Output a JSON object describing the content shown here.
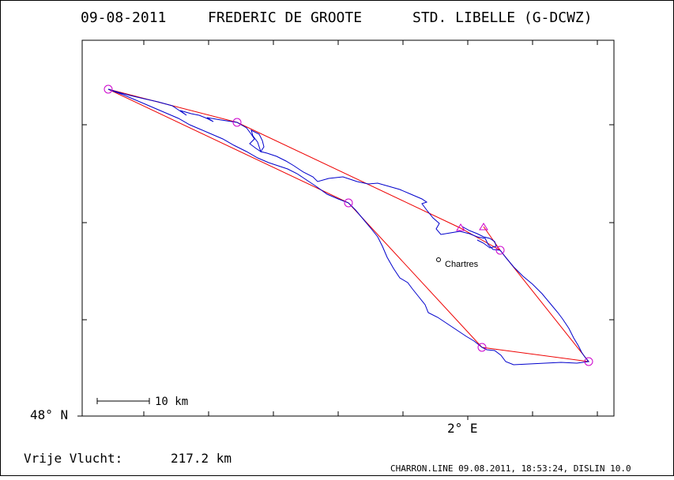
{
  "header": {
    "date": "09-08-2011",
    "pilot": "FREDERIC DE GROOTE",
    "glider": "STD. LIBELLE (G-DCWZ)"
  },
  "axes": {
    "lat_label": "48° N",
    "lon_label": "2° E"
  },
  "scale_bar": {
    "label": "10 km"
  },
  "place": {
    "name": "Chartres"
  },
  "summary": {
    "distance_label": "Vrije Vlucht:",
    "distance_value": "217.2 km"
  },
  "footer": {
    "text": "CHARRON.LINE 09.08.2011, 18:53:24, DISLIN 10.0"
  },
  "colors": {
    "frame": "#000000",
    "track": "#0000cc",
    "task": "#ee0000",
    "turnpoint": "#cc00cc"
  }
}
